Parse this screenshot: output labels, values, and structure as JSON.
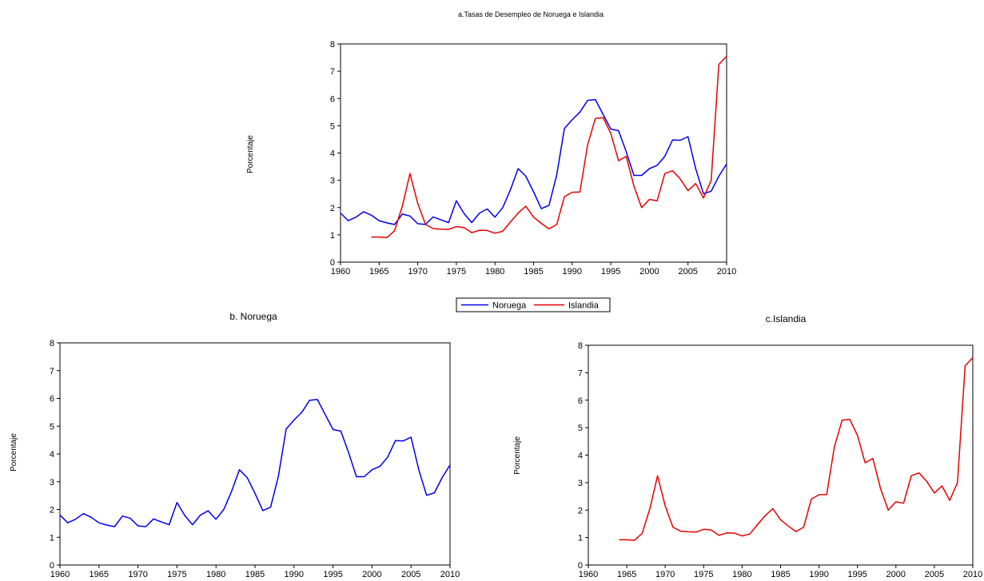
{
  "colors": {
    "noruega": "#0000e6",
    "islandia": "#e60000"
  },
  "chart_data": [
    {
      "type": "line",
      "title": "a.Tasas de Desempleo de Noruega e Islandia",
      "xlabel": "",
      "ylabel": "Porcentaje",
      "xlim": [
        1960,
        2010
      ],
      "ylim": [
        0,
        8
      ],
      "xticks": [
        "1960",
        "1965",
        "1970",
        "1975",
        "1980",
        "1985",
        "1990",
        "1995",
        "2000",
        "2005",
        "2010"
      ],
      "yticks": [
        "0",
        "1",
        "2",
        "3",
        "4",
        "5",
        "6",
        "7",
        "8"
      ],
      "legend": "bottom-center",
      "series": [
        {
          "name": "Noruega",
          "color": "#0000e6",
          "x": [
            1960,
            1961,
            1962,
            1963,
            1964,
            1965,
            1966,
            1967,
            1968,
            1969,
            1970,
            1971,
            1972,
            1973,
            1974,
            1975,
            1976,
            1977,
            1978,
            1979,
            1980,
            1981,
            1982,
            1983,
            1984,
            1985,
            1986,
            1987,
            1988,
            1989,
            1990,
            1991,
            1992,
            1993,
            1994,
            1995,
            1996,
            1997,
            1998,
            1999,
            2000,
            2001,
            2002,
            2003,
            2004,
            2005,
            2006,
            2007,
            2008,
            2009,
            2010
          ],
          "y": [
            1.8,
            1.52,
            1.65,
            1.85,
            1.72,
            1.52,
            1.44,
            1.38,
            1.76,
            1.69,
            1.41,
            1.38,
            1.66,
            1.55,
            1.45,
            2.25,
            1.78,
            1.45,
            1.8,
            1.95,
            1.65,
            2.0,
            2.65,
            3.43,
            3.15,
            2.58,
            1.96,
            2.08,
            3.2,
            4.9,
            5.22,
            5.5,
            5.93,
            5.96,
            5.42,
            4.88,
            4.82,
            4.05,
            3.18,
            3.18,
            3.43,
            3.55,
            3.88,
            4.48,
            4.47,
            4.6,
            3.42,
            2.51,
            2.6,
            3.15,
            3.6
          ]
        },
        {
          "name": "Islandia",
          "color": "#e60000",
          "x": [
            1964,
            1965,
            1966,
            1967,
            1968,
            1969,
            1970,
            1971,
            1972,
            1973,
            1974,
            1975,
            1976,
            1977,
            1978,
            1979,
            1980,
            1981,
            1982,
            1983,
            1984,
            1985,
            1986,
            1987,
            1988,
            1989,
            1990,
            1991,
            1992,
            1993,
            1994,
            1995,
            1996,
            1997,
            1998,
            1999,
            2000,
            2001,
            2002,
            2003,
            2004,
            2005,
            2006,
            2007,
            2008,
            2009,
            2010
          ],
          "y": [
            0.92,
            0.92,
            0.9,
            1.15,
            2.05,
            3.25,
            2.15,
            1.38,
            1.23,
            1.21,
            1.2,
            1.3,
            1.27,
            1.08,
            1.17,
            1.16,
            1.06,
            1.13,
            1.47,
            1.8,
            2.05,
            1.65,
            1.42,
            1.22,
            1.38,
            2.4,
            2.56,
            2.57,
            4.3,
            5.27,
            5.3,
            4.72,
            3.72,
            3.88,
            2.78,
            2.0,
            2.3,
            2.25,
            3.25,
            3.35,
            3.05,
            2.62,
            2.88,
            2.35,
            3.0,
            7.25,
            7.55
          ]
        }
      ]
    },
    {
      "type": "line",
      "title": "b. Noruega",
      "xlabel": "",
      "ylabel": "Porcentaje",
      "xlim": [
        1960,
        2010
      ],
      "ylim": [
        0,
        8
      ],
      "xticks": [
        "1960",
        "1965",
        "1970",
        "1975",
        "1980",
        "1985",
        "1990",
        "1995",
        "2000",
        "2005",
        "2010"
      ],
      "yticks": [
        "0",
        "1",
        "2",
        "3",
        "4",
        "5",
        "6",
        "7",
        "8"
      ],
      "series": [
        {
          "color": "#0000e6",
          "ref": 0
        }
      ]
    },
    {
      "type": "line",
      "title": "c.Islandia",
      "xlabel": "",
      "ylabel": "Porcentaje",
      "xlim": [
        1960,
        2010
      ],
      "ylim": [
        0,
        8
      ],
      "xticks": [
        "1960",
        "1965",
        "1970",
        "1975",
        "1980",
        "1985",
        "1990",
        "1995",
        "2000",
        "2005",
        "2010"
      ],
      "yticks": [
        "0",
        "1",
        "2",
        "3",
        "4",
        "5",
        "6",
        "7",
        "8"
      ],
      "series": [
        {
          "color": "#e60000",
          "ref": 1
        }
      ]
    }
  ]
}
